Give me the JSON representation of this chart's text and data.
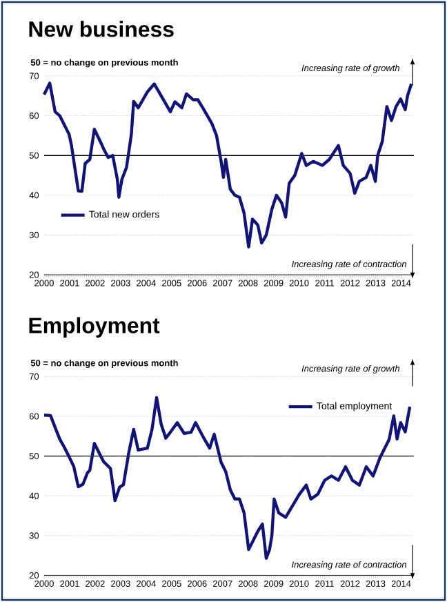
{
  "chart_data": [
    {
      "type": "line",
      "title": "New business",
      "annotations": [
        "50 = no change on previous month",
        "Increasing rate of growth",
        "Increasing rate of contraction"
      ],
      "series": [
        {
          "name": "Total new orders",
          "color": "#10137a",
          "x": [
            2000.0,
            2000.22,
            2000.43,
            2000.61,
            2000.98,
            2001.07,
            2001.34,
            2001.48,
            2001.61,
            2001.79,
            2001.97,
            2002.24,
            2002.33,
            2002.51,
            2002.69,
            2002.87,
            2002.93,
            2003.05,
            2003.23,
            2003.42,
            2003.51,
            2003.69,
            2004.05,
            2004.32,
            2004.5,
            2004.77,
            2004.95,
            2005.13,
            2005.4,
            2005.58,
            2005.85,
            2006.03,
            2006.22,
            2006.4,
            2006.58,
            2006.76,
            2006.94,
            2007.03,
            2007.12,
            2007.3,
            2007.48,
            2007.66,
            2007.84,
            2008.02,
            2008.17,
            2008.38,
            2008.53,
            2008.71,
            2008.93,
            2009.11,
            2009.32,
            2009.47,
            2009.61,
            2009.83,
            2010.1,
            2010.28,
            2010.55,
            2010.91,
            2011.18,
            2011.54,
            2011.73,
            2012.0,
            2012.18,
            2012.36,
            2012.63,
            2012.81,
            2012.99,
            2013.08,
            2013.26,
            2013.44,
            2013.62,
            2013.8,
            2013.98,
            2014.16,
            2014.25,
            2014.4
          ],
          "values": [
            65.3,
            68.2,
            61,
            60,
            55.3,
            52.6,
            41.1,
            41,
            48,
            49,
            56.6,
            53,
            51.7,
            49.5,
            50,
            44,
            39.5,
            44,
            47,
            55.3,
            63.6,
            62,
            66,
            68,
            66,
            63,
            61,
            63.5,
            62,
            65.5,
            64,
            64,
            62,
            60,
            58,
            55,
            48.5,
            44.5,
            49,
            41.5,
            40,
            39.5,
            35.5,
            27,
            34,
            32.5,
            28,
            30,
            36.5,
            40,
            38,
            34.5,
            43,
            45,
            50.5,
            47.5,
            48.5,
            47.5,
            49,
            52.5,
            47.5,
            45.5,
            40.5,
            43.5,
            44.5,
            47.5,
            43.5,
            50,
            53.5,
            62.3,
            58.8,
            62.3,
            64.2,
            61.5,
            65,
            68
          ]
        }
      ],
      "xlim": [
        2000,
        2014.5
      ],
      "xticks": [
        2000,
        2001,
        2002,
        2003,
        2004,
        2005,
        2006,
        2007,
        2008,
        2009,
        2010,
        2011,
        2012,
        2013,
        2014
      ],
      "ylim": [
        20,
        70
      ],
      "yticks": [
        20,
        30,
        40,
        50,
        60,
        70
      ],
      "ref_lines": [
        {
          "axis": "y",
          "value": 50,
          "color": "#000000"
        }
      ],
      "grid": "y",
      "legend": "left"
    },
    {
      "type": "line",
      "title": "Employment",
      "annotations": [
        "50 = no change on previous month",
        "Increasing rate of growth",
        "Increasing rate of contraction"
      ],
      "series": [
        {
          "name": "Total employment",
          "color": "#10137a",
          "x": [
            2000.0,
            2000.25,
            2000.43,
            2000.61,
            2000.8,
            2000.98,
            2001.16,
            2001.34,
            2001.52,
            2001.7,
            2001.79,
            2001.97,
            2002.15,
            2002.33,
            2002.6,
            2002.78,
            2002.96,
            2003.11,
            2003.32,
            2003.51,
            2003.69,
            2004.05,
            2004.23,
            2004.41,
            2004.59,
            2004.77,
            2004.95,
            2005.22,
            2005.49,
            2005.76,
            2005.94,
            2006.22,
            2006.49,
            2006.67,
            2006.94,
            2007.12,
            2007.3,
            2007.48,
            2007.66,
            2007.84,
            2008.02,
            2008.2,
            2008.38,
            2008.56,
            2008.71,
            2008.84,
            2008.93,
            2009.02,
            2009.2,
            2009.47,
            2009.74,
            2010.01,
            2010.28,
            2010.46,
            2010.73,
            2011.0,
            2011.27,
            2011.54,
            2011.82,
            2012.09,
            2012.36,
            2012.63,
            2012.9,
            2013.17,
            2013.35,
            2013.53,
            2013.71,
            2013.84,
            2013.98,
            2014.16,
            2014.34
          ],
          "values": [
            60.3,
            60.2,
            57.2,
            54.3,
            52.1,
            49.8,
            47.4,
            42.3,
            42.9,
            45.8,
            46.4,
            53.2,
            50.9,
            48.6,
            46.9,
            38.8,
            42.2,
            42.8,
            50.9,
            56.7,
            51.5,
            52,
            56.7,
            64.7,
            58,
            54.5,
            56,
            58.4,
            55.7,
            56,
            58.4,
            55,
            52,
            55.5,
            48.4,
            46.1,
            41.5,
            39.2,
            39.2,
            35.7,
            26.5,
            28.8,
            31.1,
            32.9,
            24.3,
            26.5,
            30,
            39.2,
            35.7,
            34.6,
            37.5,
            40.4,
            42.7,
            39.2,
            40.4,
            43.9,
            45,
            43.9,
            47.3,
            43.9,
            42.7,
            47.3,
            45,
            49.6,
            51.9,
            54.2,
            60.1,
            54.3,
            58.4,
            56.1,
            62.4
          ]
        }
      ],
      "xlim": [
        2000,
        2014.5
      ],
      "xticks": [
        2000,
        2001,
        2002,
        2003,
        2004,
        2005,
        2006,
        2007,
        2008,
        2009,
        2010,
        2011,
        2012,
        2013,
        2014
      ],
      "ylim": [
        20,
        70
      ],
      "yticks": [
        20,
        30,
        40,
        50,
        60,
        70
      ],
      "ref_lines": [
        {
          "axis": "y",
          "value": 50,
          "color": "#000000"
        }
      ],
      "grid": "y",
      "legend": "top right"
    }
  ]
}
